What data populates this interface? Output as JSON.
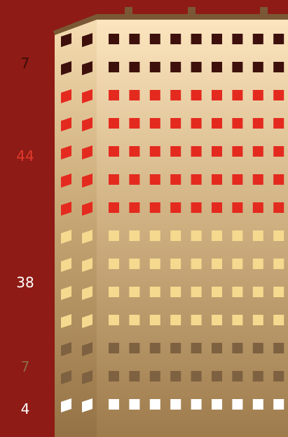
{
  "chart_data": {
    "type": "pictograph",
    "title": "",
    "orientation": "bottom-to-top",
    "background_color": "#8e1b15",
    "segments": [
      {
        "value": 4,
        "label": "4",
        "floors": 1,
        "window_color": "#ffffff",
        "label_color": "#ffffff"
      },
      {
        "value": 7,
        "label": "7",
        "floors": 2,
        "window_color": "#7d6140",
        "label_color": "#8c6a45"
      },
      {
        "value": 38,
        "label": "38",
        "floors": 4,
        "window_color": "#f4d98f",
        "label_color": "#ffffff"
      },
      {
        "value": 44,
        "label": "44",
        "floors": 5,
        "window_color": "#e42a1f",
        "label_color": "#e33a2e"
      },
      {
        "value": 7,
        "label": "7",
        "floors": 2,
        "window_color": "#3e100c",
        "label_color": "#3a0d08"
      }
    ]
  }
}
